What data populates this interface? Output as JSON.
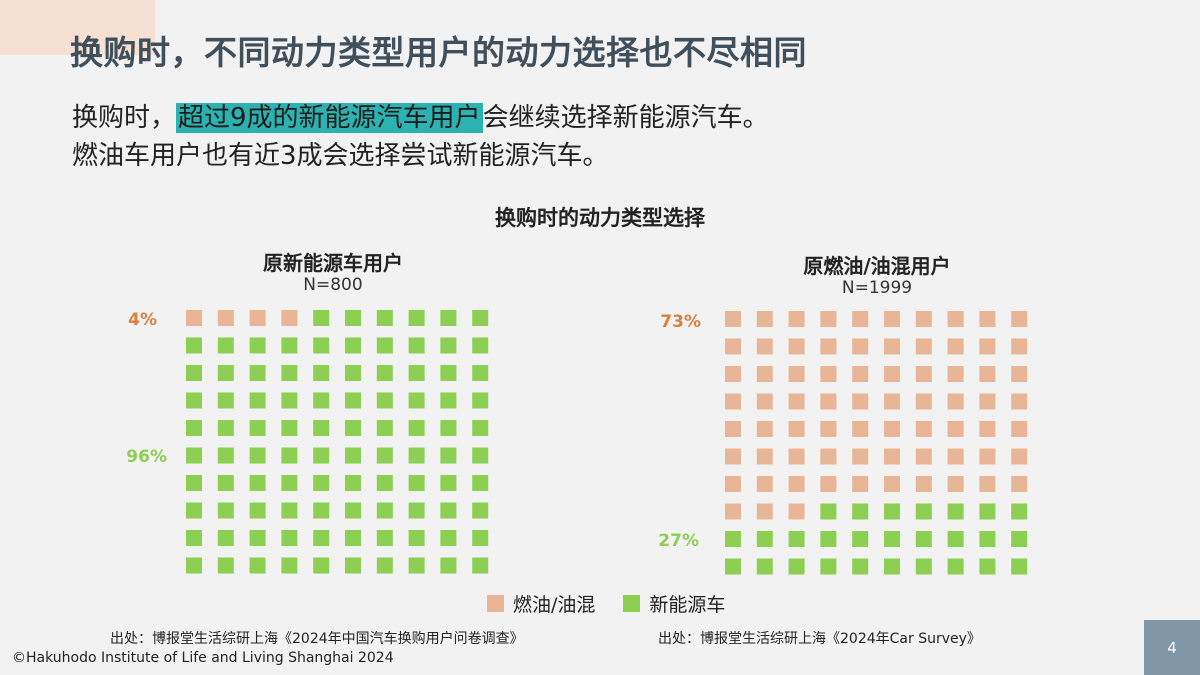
{
  "slide": {
    "title": "换购时，不同动力类型用户的动力选择也不尽相同",
    "line1_pre": "换购时，",
    "line1_highlight": "超过9成的新能源汽车用户",
    "line1_post": "会继续选择新能源汽车。",
    "line2": "燃油车用户也有近3成会选择尝试新能源汽车。",
    "page_number": "4"
  },
  "chart_data": {
    "type": "waffle",
    "title": "换购时的动力类型选择",
    "legend": [
      {
        "name": "燃油/油混",
        "color": "#e8b596"
      },
      {
        "name": "新能源车",
        "color": "#8ccf52"
      }
    ],
    "panels": [
      {
        "title": "原新能源车用户",
        "n_label": "N=800",
        "series": [
          {
            "name": "燃油/油混",
            "value": 4,
            "label": "4%",
            "color": "#e8b596",
            "label_color": "#d9803f"
          },
          {
            "name": "新能源车",
            "value": 96,
            "label": "96%",
            "color": "#8ccf52",
            "label_color": "#8ccf52"
          }
        ]
      },
      {
        "title": "原燃油/油混用户",
        "n_label": "N=1999",
        "series": [
          {
            "name": "燃油/油混",
            "value": 73,
            "label": "73%",
            "color": "#e8b596",
            "label_color": "#d9803f"
          },
          {
            "name": "新能源车",
            "value": 27,
            "label": "27%",
            "color": "#8ccf52",
            "label_color": "#8ccf52"
          }
        ]
      }
    ]
  },
  "footer": {
    "source_left": "出处：博报堂生活综研上海《2024年中国汽车换购用户问卷调查》",
    "source_right": "出处：博报堂生活综研上海《2024年Car Survey》",
    "copyright": "©Hakuhodo Institute of Life and Living Shanghai 2024"
  }
}
